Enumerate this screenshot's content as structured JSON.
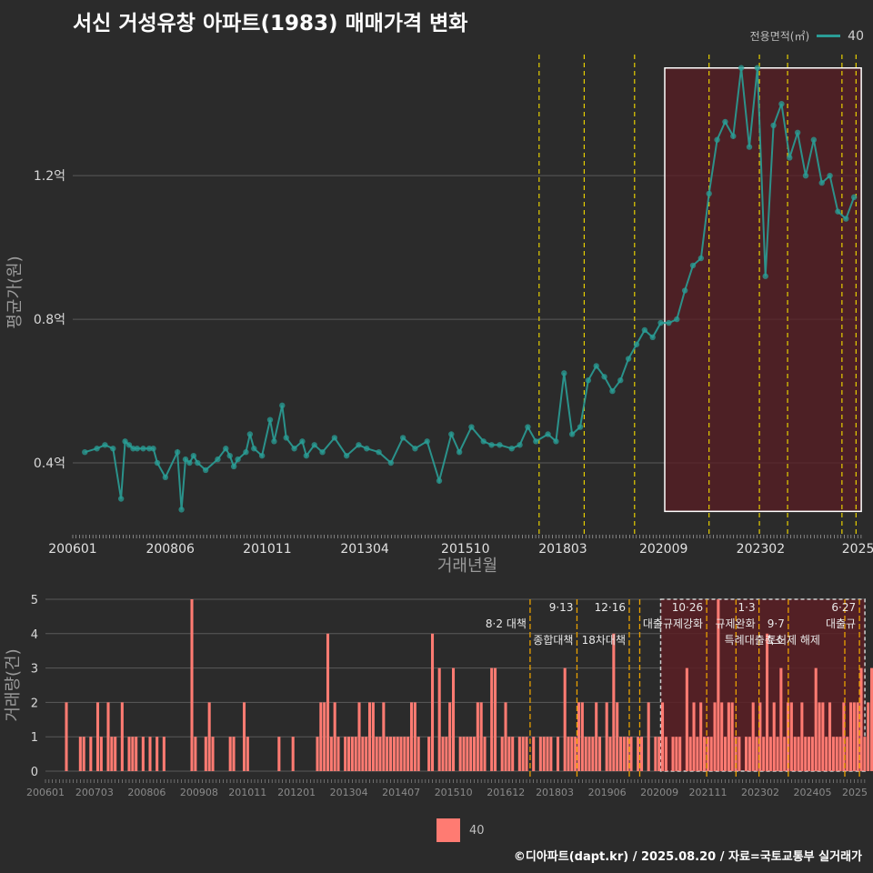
{
  "title": "서신 거성유창 아파트(1983) 매매가격 변화",
  "legend_top": {
    "label": "전용면적(㎡)",
    "value": "40"
  },
  "legend_bottom": {
    "value": "40"
  },
  "footer": "©디아파트(dapt.kr) / 2025.08.20 / 자료=국토교통부 실거래가",
  "colors": {
    "line": "#2a9d96",
    "bar": "#ff7b72",
    "highlight": "#5a1e24",
    "vline": "#e8d000",
    "vline_bottom": "#e8a000"
  },
  "chart_data": [
    {
      "type": "line",
      "ylabel": "평균가(원)",
      "xlabel": "거래년월",
      "ylim": [
        0.2,
        1.55
      ],
      "yticks": [
        0.4,
        0.8,
        1.2
      ],
      "ytick_labels": [
        "0.4억",
        "0.8억",
        "1.2억"
      ],
      "xlim": [
        2006.0,
        2025.6
      ],
      "xticks": [
        2006.0,
        2008.42,
        2010.83,
        2013.25,
        2015.75,
        2018.17,
        2020.67,
        2023.08,
        2025.5
      ],
      "xtick_labels": [
        "200601",
        "200806",
        "201011",
        "201304",
        "201510",
        "201803",
        "202009",
        "202302",
        "2025"
      ],
      "policy_lines": [
        2017.58,
        2018.7,
        2019.95,
        2021.8,
        2023.05,
        2023.75,
        2025.1,
        2025.45
      ],
      "highlight": {
        "x": [
          2020.7,
          2025.58
        ],
        "y": [
          0.265,
          1.5
        ]
      },
      "series": [
        {
          "name": "40",
          "x": [
            2006.3,
            2006.6,
            2006.8,
            2007.0,
            2007.2,
            2007.3,
            2007.4,
            2007.5,
            2007.6,
            2007.75,
            2007.9,
            2008.0,
            2008.1,
            2008.3,
            2008.6,
            2008.7,
            2008.8,
            2008.9,
            2009.0,
            2009.1,
            2009.3,
            2009.6,
            2009.8,
            2009.9,
            2010.0,
            2010.1,
            2010.3,
            2010.4,
            2010.5,
            2010.7,
            2010.9,
            2011.0,
            2011.2,
            2011.3,
            2011.5,
            2011.7,
            2011.8,
            2012.0,
            2012.2,
            2012.5,
            2012.8,
            2013.1,
            2013.3,
            2013.6,
            2013.9,
            2014.2,
            2014.5,
            2014.8,
            2015.1,
            2015.4,
            2015.6,
            2015.9,
            2016.2,
            2016.4,
            2016.6,
            2016.9,
            2017.1,
            2017.3,
            2017.5,
            2017.8,
            2018.0,
            2018.2,
            2018.4,
            2018.6,
            2018.8,
            2019.0,
            2019.2,
            2019.4,
            2019.6,
            2019.8,
            2020.0,
            2020.2,
            2020.4,
            2020.6,
            2020.8,
            2021.0,
            2021.2,
            2021.4,
            2021.6,
            2021.8,
            2022.0,
            2022.2,
            2022.4,
            2022.6,
            2022.8,
            2023.0,
            2023.2,
            2023.4,
            2023.6,
            2023.8,
            2024.0,
            2024.2,
            2024.4,
            2024.6,
            2024.8,
            2025.0,
            2025.2,
            2025.4
          ],
          "y": [
            0.43,
            0.44,
            0.45,
            0.44,
            0.3,
            0.46,
            0.45,
            0.44,
            0.44,
            0.44,
            0.44,
            0.44,
            0.4,
            0.36,
            0.43,
            0.27,
            0.41,
            0.4,
            0.42,
            0.4,
            0.38,
            0.41,
            0.44,
            0.42,
            0.39,
            0.41,
            0.43,
            0.48,
            0.44,
            0.42,
            0.52,
            0.46,
            0.56,
            0.47,
            0.44,
            0.46,
            0.42,
            0.45,
            0.43,
            0.47,
            0.42,
            0.45,
            0.44,
            0.43,
            0.4,
            0.47,
            0.44,
            0.46,
            0.35,
            0.48,
            0.43,
            0.5,
            0.46,
            0.45,
            0.45,
            0.44,
            0.45,
            0.5,
            0.46,
            0.48,
            0.46,
            0.65,
            0.48,
            0.5,
            0.63,
            0.67,
            0.64,
            0.6,
            0.63,
            0.69,
            0.73,
            0.77,
            0.75,
            0.79,
            0.79,
            0.8,
            0.88,
            0.95,
            0.97,
            1.15,
            1.3,
            1.35,
            1.31,
            1.5,
            1.28,
            1.5,
            0.92,
            1.34,
            1.4,
            1.25,
            1.32,
            1.2,
            1.3,
            1.18,
            1.2,
            1.1,
            1.08,
            1.14
          ]
        }
      ]
    },
    {
      "type": "bar",
      "ylabel": "거래량(건)",
      "ylim": [
        0,
        5
      ],
      "yticks": [
        0,
        1,
        2,
        3,
        4,
        5
      ],
      "ytick_labels": [
        "0",
        "1",
        "2",
        "3",
        "4",
        "5"
      ],
      "xlim": [
        2006.0,
        2025.6
      ],
      "xticks": [
        2006.0,
        2007.17,
        2008.42,
        2009.67,
        2010.83,
        2012.0,
        2013.25,
        2014.5,
        2015.75,
        2017.0,
        2018.17,
        2019.42,
        2020.67,
        2021.83,
        2023.08,
        2024.33,
        2025.5
      ],
      "xtick_labels": [
        "200601",
        "200703",
        "200806",
        "200908",
        "201011",
        "201201",
        "201304",
        "201407",
        "201510",
        "201612",
        "201803",
        "201906",
        "202009",
        "202111",
        "202302",
        "202405",
        "2025"
      ],
      "policy_lines": [
        2017.58,
        2018.7,
        2019.95,
        2020.2,
        2021.8,
        2022.5,
        2023.05,
        2023.75,
        2025.1,
        2025.45
      ],
      "policy_labels": [
        {
          "x": 2017.58,
          "text": "8·2 대책",
          "row": 2
        },
        {
          "x": 2018.7,
          "text": "9·13",
          "row": 1
        },
        {
          "x": 2018.7,
          "text": "종합대책",
          "row": 3
        },
        {
          "x": 2019.95,
          "text": "12·16",
          "row": 1
        },
        {
          "x": 2019.95,
          "text": "18차대책",
          "row": 3
        },
        {
          "x": 2021.8,
          "text": "10·26",
          "row": 1
        },
        {
          "x": 2021.8,
          "text": "대출규제강화",
          "row": 2
        },
        {
          "x": 2023.05,
          "text": "1·3",
          "row": 1
        },
        {
          "x": 2023.05,
          "text": "규제완화",
          "row": 2
        },
        {
          "x": 2023.75,
          "text": "9·7",
          "row": 2
        },
        {
          "x": 2023.75,
          "text": "특례대출축소",
          "row": 3
        },
        {
          "x": 2024.6,
          "text": "토허제 해제",
          "row": 3
        },
        {
          "x": 2025.45,
          "text": "6·27",
          "row": 1
        },
        {
          "x": 2025.45,
          "text": "대출규",
          "row": 2
        }
      ],
      "highlight": {
        "x": [
          2020.7,
          2025.58
        ],
        "y": [
          0,
          5
        ]
      },
      "x_start": 2006.0,
      "step": 0.0833,
      "values": [
        0,
        0,
        0,
        0,
        0,
        0,
        2,
        0,
        0,
        0,
        1,
        1,
        0,
        1,
        0,
        2,
        1,
        0,
        2,
        1,
        1,
        0,
        2,
        0,
        1,
        1,
        1,
        0,
        1,
        0,
        1,
        0,
        1,
        0,
        1,
        0,
        0,
        0,
        0,
        0,
        0,
        0,
        5,
        1,
        0,
        0,
        1,
        2,
        1,
        0,
        0,
        0,
        0,
        1,
        1,
        0,
        0,
        2,
        1,
        0,
        0,
        0,
        0,
        0,
        0,
        0,
        0,
        1,
        0,
        0,
        0,
        1,
        0,
        0,
        0,
        0,
        0,
        0,
        1,
        2,
        2,
        4,
        1,
        2,
        1,
        0,
        1,
        1,
        1,
        1,
        2,
        1,
        1,
        2,
        2,
        1,
        1,
        2,
        1,
        1,
        1,
        1,
        1,
        1,
        1,
        2,
        2,
        1,
        0,
        0,
        1,
        4,
        0,
        3,
        1,
        1,
        2,
        3,
        0,
        1,
        1,
        1,
        1,
        1,
        2,
        2,
        1,
        0,
        3,
        3,
        0,
        1,
        2,
        1,
        1,
        0,
        1,
        1,
        1,
        0,
        1,
        0,
        1,
        1,
        1,
        1,
        0,
        1,
        0,
        3,
        1,
        1,
        1,
        2,
        2,
        1,
        1,
        1,
        2,
        1,
        0,
        2,
        1,
        4,
        2,
        1,
        1,
        1,
        1,
        0,
        1,
        1,
        0,
        2,
        0,
        1,
        1,
        2,
        1,
        0,
        1,
        1,
        1,
        0,
        3,
        1,
        2,
        1,
        2,
        1,
        1,
        1,
        2,
        5,
        2,
        1,
        2,
        2,
        1,
        1,
        0,
        1,
        1,
        2,
        1,
        2,
        1,
        4,
        1,
        2,
        1,
        3,
        1,
        2,
        2,
        1,
        1,
        2,
        1,
        1,
        1,
        3,
        2,
        2,
        1,
        2,
        1,
        1,
        1,
        2,
        1,
        2,
        2,
        2,
        3,
        1,
        2,
        3,
        1,
        2,
        2,
        1,
        3,
        2,
        1,
        1,
        2,
        2,
        2,
        1,
        1,
        2,
        2,
        3,
        4,
        3,
        2,
        1,
        2,
        3,
        1,
        2,
        2,
        1,
        1,
        1,
        2,
        0,
        1,
        1,
        1,
        2,
        0,
        1,
        2,
        1,
        3,
        1,
        1,
        1,
        1,
        2,
        2,
        1,
        1,
        0,
        1,
        1,
        1,
        1,
        2,
        1,
        1,
        0,
        1,
        1,
        1,
        3,
        1,
        2,
        1,
        1,
        1,
        1,
        0,
        1,
        1,
        1,
        1,
        1,
        0,
        1,
        1,
        1,
        2,
        1,
        0,
        1,
        1,
        1,
        1,
        2,
        1,
        1,
        1,
        0,
        0,
        1,
        1
      ]
    }
  ]
}
